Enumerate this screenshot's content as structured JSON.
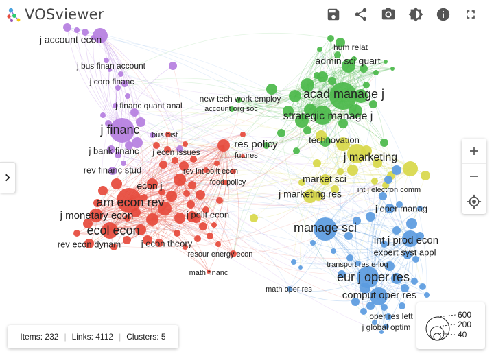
{
  "app": {
    "title": "VOSviewer"
  },
  "toolbar": {
    "buttons": [
      {
        "name": "save-icon"
      },
      {
        "name": "share-icon"
      },
      {
        "name": "camera-icon"
      },
      {
        "name": "brightness-icon"
      },
      {
        "name": "info-icon"
      },
      {
        "name": "fullscreen-icon"
      }
    ]
  },
  "colors": {
    "purple": "#b57ee0",
    "red": "#e64a3c",
    "green": "#4bb84a",
    "yellow": "#d8d84a",
    "blue": "#5b9be0"
  },
  "network": {
    "labels": [
      {
        "text": "j account econ",
        "cluster": "purple"
      },
      {
        "text": "j bus finan account",
        "cluster": "purple"
      },
      {
        "text": "j corp financ",
        "cluster": "purple"
      },
      {
        "text": "j financ quant anal",
        "cluster": "purple"
      },
      {
        "text": "j financ",
        "cluster": "purple"
      },
      {
        "text": "bus hist",
        "cluster": "purple"
      },
      {
        "text": "j bank financ",
        "cluster": "purple"
      },
      {
        "text": "j econ issues",
        "cluster": "red"
      },
      {
        "text": "rev financ stud",
        "cluster": "purple"
      },
      {
        "text": "rev int polit econ",
        "cluster": "red"
      },
      {
        "text": "food policy",
        "cluster": "red"
      },
      {
        "text": "econ j",
        "cluster": "red"
      },
      {
        "text": "am econ rev",
        "cluster": "red"
      },
      {
        "text": "j monetary econ",
        "cluster": "red"
      },
      {
        "text": "ecol econ",
        "cluster": "red"
      },
      {
        "text": "j polit econ",
        "cluster": "red"
      },
      {
        "text": "rev econ dynam",
        "cluster": "red"
      },
      {
        "text": "j econ theory",
        "cluster": "red"
      },
      {
        "text": "resour energy econ",
        "cluster": "red"
      },
      {
        "text": "math financ",
        "cluster": "red"
      },
      {
        "text": "res policy",
        "cluster": "red"
      },
      {
        "text": "futures",
        "cluster": "red"
      },
      {
        "text": "new tech work employ",
        "cluster": "green"
      },
      {
        "text": "account org soc",
        "cluster": "green"
      },
      {
        "text": "hum relat",
        "cluster": "green"
      },
      {
        "text": "admin sci quart",
        "cluster": "green"
      },
      {
        "text": "acad manage j",
        "cluster": "green"
      },
      {
        "text": "strategic manage j",
        "cluster": "green"
      },
      {
        "text": "technovation",
        "cluster": "green"
      },
      {
        "text": "j marketing",
        "cluster": "yellow"
      },
      {
        "text": "market sci",
        "cluster": "yellow"
      },
      {
        "text": "int j electron comm",
        "cluster": "yellow"
      },
      {
        "text": "j marketing res",
        "cluster": "yellow"
      },
      {
        "text": "j oper manag",
        "cluster": "blue"
      },
      {
        "text": "manage sci",
        "cluster": "blue"
      },
      {
        "text": "int j prod econ",
        "cluster": "blue"
      },
      {
        "text": "expert syst appl",
        "cluster": "blue"
      },
      {
        "text": "transport res e-log",
        "cluster": "blue"
      },
      {
        "text": "eur j oper res",
        "cluster": "blue"
      },
      {
        "text": "math oper res",
        "cluster": "blue"
      },
      {
        "text": "comput oper res",
        "cluster": "blue"
      },
      {
        "text": "oper res lett",
        "cluster": "blue"
      },
      {
        "text": "j global optim",
        "cluster": "blue"
      }
    ]
  },
  "stats": {
    "items_label": "Items: 232",
    "links_label": "Links: 4112",
    "clusters_label": "Clusters: 5"
  },
  "size_legend": {
    "values": [
      "600",
      "200",
      "40"
    ]
  }
}
